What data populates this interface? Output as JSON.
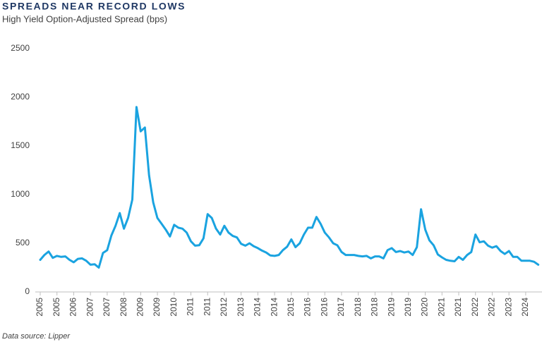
{
  "chart_data": {
    "type": "line",
    "title": "SPREADS NEAR RECORD LOWS",
    "subtitle": "High Yield Option-Adjusted Spread (bps)",
    "source": "Data source: Lipper",
    "color": "#1aa3e0",
    "grid": false,
    "ylim": [
      0,
      2500
    ],
    "yticks": [
      0,
      500,
      1000,
      1500,
      2000,
      2500
    ],
    "categories": [
      "2005",
      null,
      null,
      null,
      "2005",
      null,
      null,
      null,
      "2006",
      null,
      null,
      null,
      "2007",
      null,
      null,
      null,
      "2007",
      null,
      null,
      null,
      "2008",
      null,
      null,
      null,
      "2009",
      null,
      null,
      null,
      "2009",
      null,
      null,
      null,
      "2010",
      null,
      null,
      null,
      "2011",
      null,
      null,
      null,
      "2011",
      null,
      null,
      null,
      "2012",
      null,
      null,
      null,
      "2013",
      null,
      null,
      null,
      "2014",
      null,
      null,
      null,
      "2014",
      null,
      null,
      null,
      "2015",
      null,
      null,
      null,
      "2016",
      null,
      null,
      null,
      "2016",
      null,
      null,
      null,
      "2017",
      null,
      null,
      null,
      "2018",
      null,
      null,
      null,
      "2018",
      null,
      null,
      null,
      "2019",
      null,
      null,
      null,
      "2019",
      null,
      null,
      null,
      "2020",
      null,
      null,
      null,
      "2021",
      null,
      null,
      null,
      "2021",
      null,
      null,
      null,
      "2022",
      null,
      null,
      null,
      "2022",
      null,
      null,
      null,
      "2023",
      null,
      null,
      null,
      "2024",
      null,
      null,
      null
    ],
    "values": [
      330,
      380,
      415,
      350,
      370,
      360,
      365,
      330,
      305,
      340,
      345,
      320,
      280,
      285,
      250,
      400,
      430,
      580,
      680,
      810,
      650,
      760,
      950,
      1900,
      1650,
      1690,
      1200,
      920,
      760,
      700,
      640,
      570,
      690,
      660,
      650,
      610,
      520,
      475,
      480,
      550,
      800,
      760,
      650,
      590,
      680,
      610,
      575,
      560,
      495,
      475,
      500,
      470,
      450,
      425,
      405,
      375,
      370,
      380,
      430,
      465,
      540,
      460,
      500,
      590,
      660,
      660,
      770,
      700,
      610,
      560,
      500,
      480,
      410,
      380,
      380,
      380,
      370,
      365,
      370,
      345,
      365,
      365,
      345,
      430,
      450,
      410,
      420,
      405,
      415,
      380,
      460,
      850,
      640,
      530,
      480,
      385,
      355,
      330,
      320,
      315,
      360,
      330,
      380,
      410,
      590,
      510,
      520,
      475,
      455,
      470,
      420,
      390,
      420,
      360,
      360,
      320,
      320,
      320,
      310,
      280
    ]
  }
}
